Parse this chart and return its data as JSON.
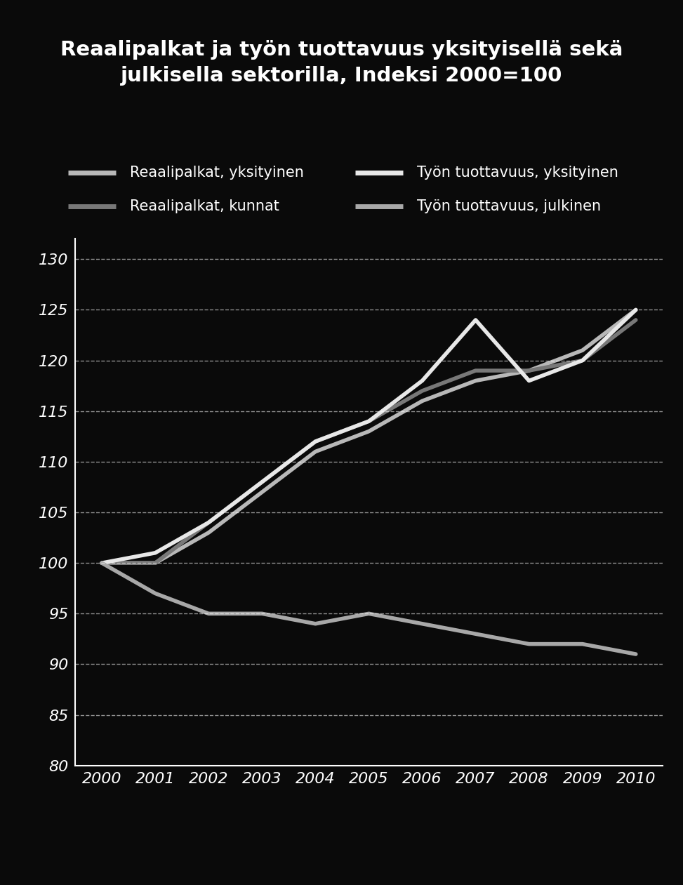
{
  "title": "Reaalipalkat ja työn tuottavuus yksityisellä sekä\njulkisella sektorilla, Indeksi 2000=100",
  "years": [
    2000,
    2001,
    2002,
    2003,
    2004,
    2005,
    2006,
    2007,
    2008,
    2009,
    2010
  ],
  "series": {
    "reaalipalkat_yksityinen": [
      100,
      100,
      103,
      107,
      111,
      113,
      116,
      118,
      119,
      121,
      125
    ],
    "reaalipalkat_kunnat": [
      100,
      100,
      104,
      108,
      112,
      114,
      117,
      119,
      119,
      120,
      124
    ],
    "tuottavuus_yksityinen": [
      100,
      101,
      104,
      108,
      112,
      114,
      118,
      124,
      118,
      120,
      125
    ],
    "tuottavuus_julkinen": [
      100,
      97,
      95,
      95,
      94,
      95,
      94,
      93,
      92,
      92,
      91
    ]
  },
  "line_colors": {
    "reaalipalkat_yksityinen": "#b8b8b8",
    "reaalipalkat_kunnat": "#787878",
    "tuottavuus_yksityinen": "#e8e8e8",
    "tuottavuus_julkinen": "#a8a8a8"
  },
  "line_widths": {
    "reaalipalkat_yksityinen": 4.0,
    "reaalipalkat_kunnat": 4.0,
    "tuottavuus_yksityinen": 4.0,
    "tuottavuus_julkinen": 4.0
  },
  "legend_labels": [
    "Reaalipalkat, yksityinen",
    "Reaalipalkat, kunnat",
    "Työn tuottavuus, yksityinen",
    "Työn tuottavuus, julkinen"
  ],
  "legend_colors": [
    "#b8b8b8",
    "#787878",
    "#e8e8e8",
    "#a8a8a8"
  ],
  "ylim": [
    80,
    132
  ],
  "yticks": [
    80,
    85,
    90,
    95,
    100,
    105,
    110,
    115,
    120,
    125,
    130
  ],
  "background_color": "#0a0a0a",
  "text_color": "#ffffff",
  "grid_color": "#ffffff",
  "axis_color": "#ffffff",
  "title_fontsize": 21,
  "tick_fontsize": 16,
  "legend_fontsize": 15
}
